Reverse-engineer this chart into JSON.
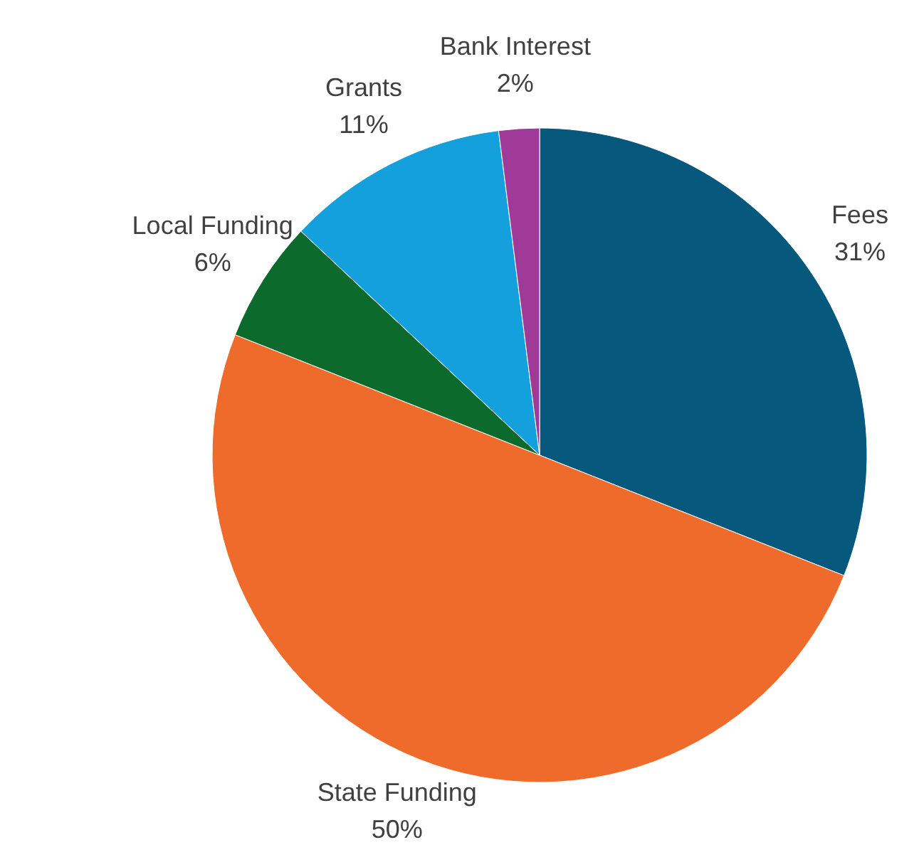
{
  "chart_data": {
    "type": "pie",
    "categories": [
      "Fees",
      "State Funding",
      "Local Funding",
      "Grants",
      "Bank Interest"
    ],
    "values": [
      31,
      50,
      6,
      11,
      2
    ],
    "colors": [
      "#06587d",
      "#ee6b2c",
      "#0b6a2c",
      "#14a0dc",
      "#a03a98"
    ],
    "value_labels": [
      "31%",
      "50%",
      "6%",
      "11%",
      "2%"
    ]
  }
}
